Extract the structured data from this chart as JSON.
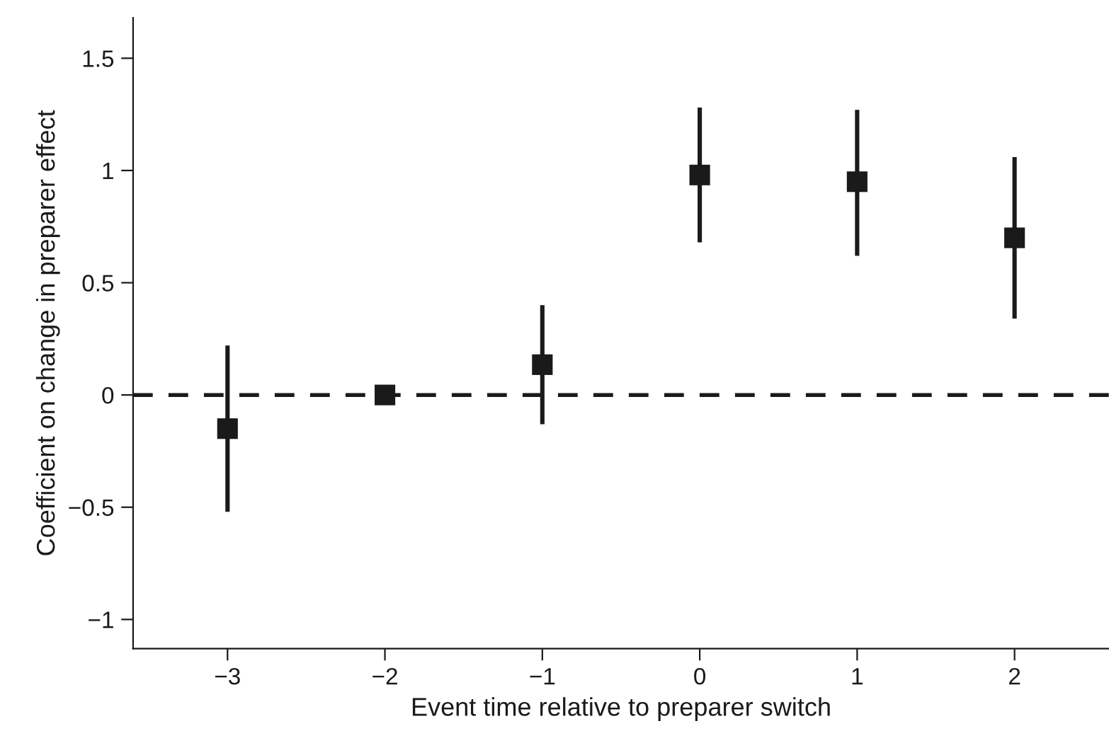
{
  "chart_data": {
    "type": "scatter",
    "xlabel": "Event time relative to preparer switch",
    "ylabel": "Coefficient on change in preparer effect",
    "x": [
      -3,
      -2,
      -1,
      0,
      1,
      2
    ],
    "series": [
      {
        "color": "#1a1a1a",
        "values": [
          -0.15,
          0,
          0.135,
          0.98,
          0.95,
          0.7
        ],
        "errors": [
          [
            -0.52,
            0.22
          ],
          null,
          [
            -0.13,
            0.4
          ],
          [
            0.68,
            1.28
          ],
          [
            0.62,
            1.27
          ],
          [
            0.34,
            1.06
          ]
        ]
      }
    ],
    "marker": "square",
    "xlim": [
      -3.6,
      2.6
    ],
    "xticks": [
      {
        "value": -3,
        "label": "−3"
      },
      {
        "value": -2,
        "label": "−2"
      },
      {
        "value": -1,
        "label": "−1"
      },
      0,
      1,
      2
    ],
    "ylim": [
      -1.13,
      1.68
    ],
    "yticks": [
      {
        "value": -1,
        "label": "−1"
      },
      {
        "value": -0.5,
        "label": "−0.5"
      },
      0,
      0.5,
      1,
      1.5
    ],
    "ref_lines": [
      {
        "axis": "y",
        "value": 0,
        "color": "#1a1a1a",
        "line_style": "dashed"
      }
    ],
    "grid": false
  }
}
